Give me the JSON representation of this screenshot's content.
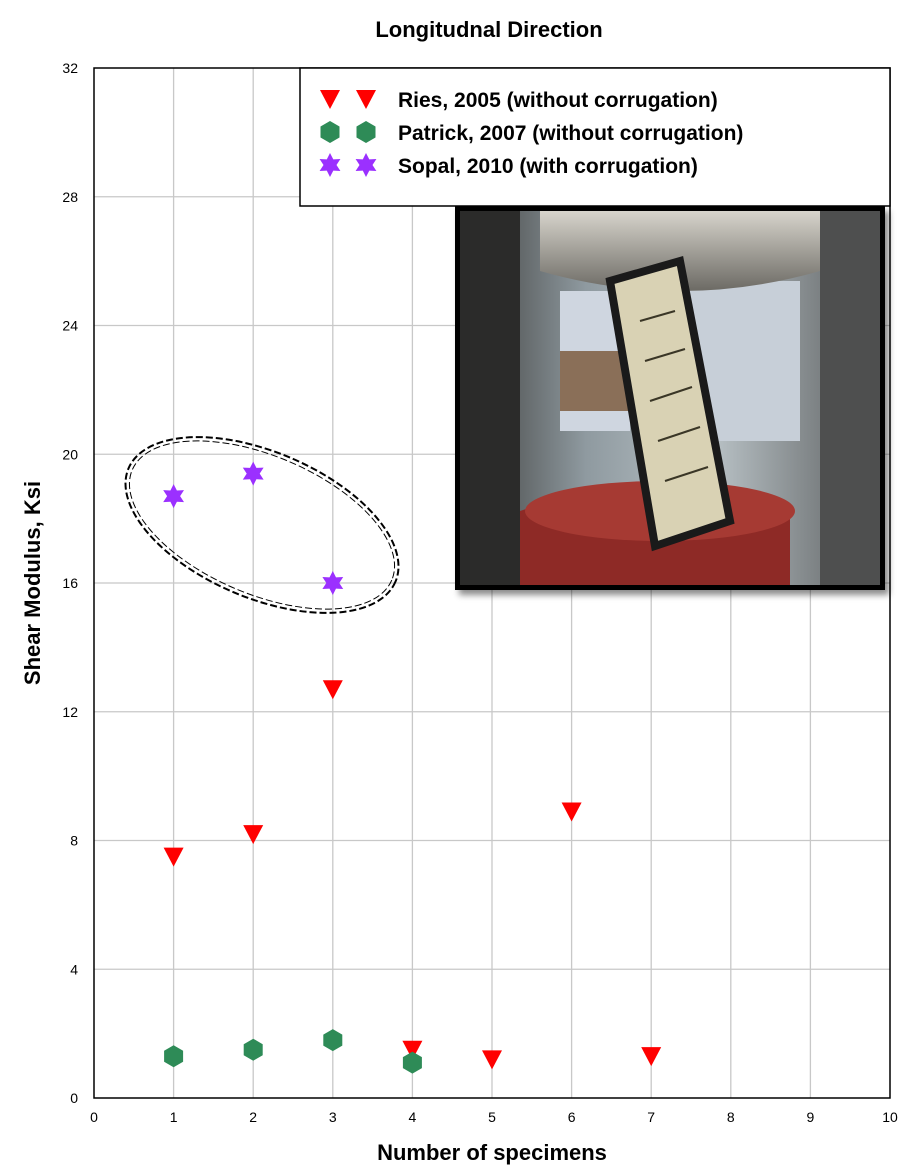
{
  "chart_data": {
    "type": "scatter",
    "title": "Longitudnal Direction",
    "xlabel": "Number of specimens",
    "ylabel": "Shear Modulus, Ksi",
    "xlim": [
      0,
      10
    ],
    "ylim": [
      0,
      32
    ],
    "xticks": [
      "0",
      "1",
      "2",
      "3",
      "4",
      "5",
      "6",
      "7",
      "8",
      "9",
      "10"
    ],
    "yticks": [
      "0",
      "4",
      "8",
      "12",
      "16",
      "20",
      "24",
      "28",
      "32"
    ],
    "grid": true,
    "legend_position": "top-right",
    "series": [
      {
        "name": "Ries, 2005 (without corrugation)",
        "marker": "triangle-down",
        "color": "#ff0000",
        "points": [
          [
            1,
            7.5
          ],
          [
            2,
            8.2
          ],
          [
            3,
            12.7
          ],
          [
            4,
            1.5
          ],
          [
            5,
            1.2
          ],
          [
            6,
            8.9
          ],
          [
            7,
            1.3
          ]
        ]
      },
      {
        "name": "Patrick, 2007 (without corrugation)",
        "marker": "hexagon",
        "color": "#2e8b57",
        "points": [
          [
            1,
            1.3
          ],
          [
            2,
            1.5
          ],
          [
            3,
            1.8
          ],
          [
            4,
            1.1
          ]
        ]
      },
      {
        "name": "Sopal, 2010 (with corrugation)",
        "marker": "star6",
        "color": "#9b30ff",
        "points": [
          [
            1,
            18.7
          ],
          [
            2,
            19.4
          ],
          [
            3,
            16.0
          ]
        ]
      }
    ],
    "annotations": [
      "dashed ellipse around Sopal, 2010 points",
      "inset photograph of shear test specimen in testing frame"
    ]
  }
}
